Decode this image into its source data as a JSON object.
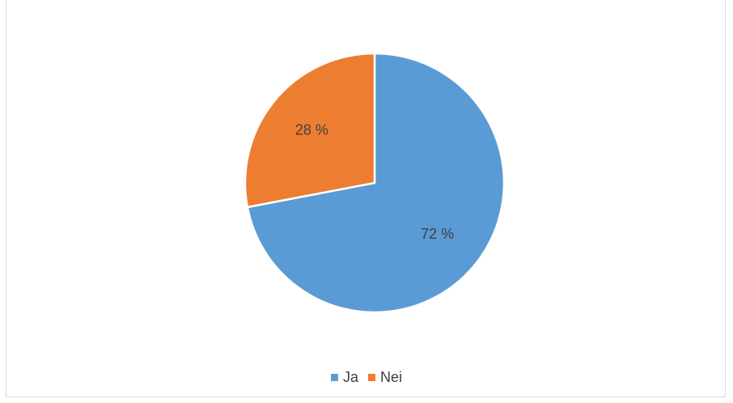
{
  "chart_data": {
    "type": "pie",
    "categories": [
      "Ja",
      "Nei"
    ],
    "values": [
      72,
      28
    ],
    "data_labels": [
      "72 %",
      "28 %"
    ],
    "colors": [
      "#5b9bd5",
      "#ed7d31"
    ],
    "start_angle_deg": 0,
    "direction": "clockwise",
    "legend_position": "bottom"
  }
}
